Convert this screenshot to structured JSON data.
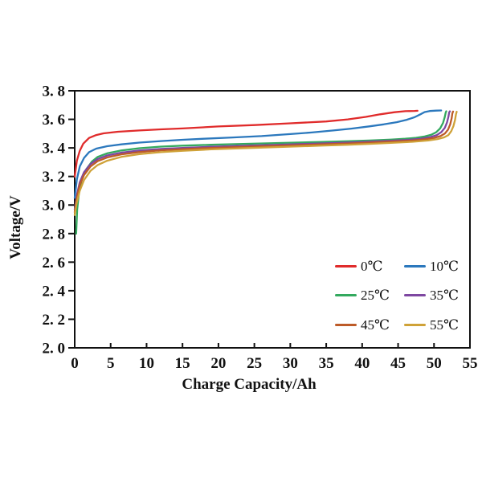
{
  "chart_data": {
    "type": "line",
    "title": "",
    "xlabel": "Charge Capacity/Ah",
    "ylabel": "Voltage/V",
    "xlim": [
      0,
      55
    ],
    "ylim": [
      2.0,
      3.8
    ],
    "grid": false,
    "legend_position": "inside lower right, 2 columns",
    "frame_color": "#111111",
    "xticks": {
      "values": [
        0,
        5,
        10,
        15,
        20,
        25,
        30,
        35,
        40,
        45,
        50,
        55
      ],
      "labels": [
        "0",
        "5",
        "10",
        "15",
        "20",
        "25",
        "30",
        "35",
        "40",
        "45",
        "50",
        "55"
      ]
    },
    "yticks": {
      "values": [
        2.0,
        2.2,
        2.4,
        2.6,
        2.8,
        3.0,
        3.2,
        3.4,
        3.6,
        3.8
      ],
      "labels": [
        "2. 0",
        "2. 2",
        "2. 4",
        "2. 6",
        "2. 8",
        "3. 0",
        "3. 2",
        "3. 4",
        "3. 6",
        "3. 8"
      ]
    },
    "series": [
      {
        "name": "0℃",
        "color": "#e02b2b",
        "points": [
          [
            0,
            3.2
          ],
          [
            0.3,
            3.31
          ],
          [
            0.7,
            3.38
          ],
          [
            1.2,
            3.43
          ],
          [
            2,
            3.47
          ],
          [
            3,
            3.49
          ],
          [
            4,
            3.502
          ],
          [
            6,
            3.513
          ],
          [
            9,
            3.522
          ],
          [
            12,
            3.53
          ],
          [
            15,
            3.536
          ],
          [
            20,
            3.55
          ],
          [
            25,
            3.56
          ],
          [
            30,
            3.572
          ],
          [
            35,
            3.585
          ],
          [
            38,
            3.6
          ],
          [
            40.5,
            3.617
          ],
          [
            42.5,
            3.635
          ],
          [
            44.5,
            3.65
          ],
          [
            46,
            3.657
          ],
          [
            47.3,
            3.659
          ],
          [
            47.7,
            3.66
          ]
        ]
      },
      {
        "name": "10℃",
        "color": "#2b78bd",
        "points": [
          [
            0,
            3.05
          ],
          [
            0.3,
            3.18
          ],
          [
            0.7,
            3.27
          ],
          [
            1.3,
            3.33
          ],
          [
            2,
            3.37
          ],
          [
            3,
            3.395
          ],
          [
            4.5,
            3.412
          ],
          [
            6.5,
            3.425
          ],
          [
            9,
            3.437
          ],
          [
            12,
            3.448
          ],
          [
            15,
            3.457
          ],
          [
            18,
            3.464
          ],
          [
            22,
            3.473
          ],
          [
            26,
            3.483
          ],
          [
            30,
            3.497
          ],
          [
            33,
            3.508
          ],
          [
            36,
            3.522
          ],
          [
            38.5,
            3.535
          ],
          [
            41,
            3.551
          ],
          [
            43,
            3.565
          ],
          [
            44.8,
            3.58
          ],
          [
            46.2,
            3.597
          ],
          [
            47.3,
            3.615
          ],
          [
            48.1,
            3.635
          ],
          [
            48.7,
            3.651
          ],
          [
            49.4,
            3.658
          ],
          [
            50.3,
            3.661
          ],
          [
            51,
            3.662
          ]
        ]
      },
      {
        "name": "25℃",
        "color": "#33a95e",
        "points": [
          [
            0.2,
            2.8
          ],
          [
            0.35,
            2.97
          ],
          [
            0.6,
            3.09
          ],
          [
            1,
            3.18
          ],
          [
            1.6,
            3.25
          ],
          [
            2.4,
            3.305
          ],
          [
            3.2,
            3.337
          ],
          [
            4.5,
            3.362
          ],
          [
            6.5,
            3.382
          ],
          [
            9,
            3.398
          ],
          [
            12,
            3.409
          ],
          [
            15,
            3.416
          ],
          [
            19,
            3.422
          ],
          [
            24,
            3.429
          ],
          [
            29,
            3.435
          ],
          [
            34,
            3.441
          ],
          [
            38,
            3.447
          ],
          [
            41,
            3.452
          ],
          [
            44,
            3.458
          ],
          [
            46,
            3.464
          ],
          [
            47.5,
            3.471
          ],
          [
            48.7,
            3.48
          ],
          [
            49.6,
            3.492
          ],
          [
            50.3,
            3.51
          ],
          [
            50.85,
            3.537
          ],
          [
            51.25,
            3.575
          ],
          [
            51.5,
            3.617
          ],
          [
            51.62,
            3.647
          ],
          [
            51.7,
            3.656
          ]
        ]
      },
      {
        "name": "35℃",
        "color": "#7e47a1",
        "points": [
          [
            0,
            2.97
          ],
          [
            0.3,
            3.07
          ],
          [
            0.7,
            3.16
          ],
          [
            1.3,
            3.23
          ],
          [
            2.2,
            3.287
          ],
          [
            3.2,
            3.322
          ],
          [
            4.5,
            3.347
          ],
          [
            6.5,
            3.367
          ],
          [
            9,
            3.382
          ],
          [
            12,
            3.393
          ],
          [
            15,
            3.4
          ],
          [
            19,
            3.408
          ],
          [
            24,
            3.416
          ],
          [
            29,
            3.423
          ],
          [
            34,
            3.431
          ],
          [
            38,
            3.438
          ],
          [
            41,
            3.444
          ],
          [
            44,
            3.45
          ],
          [
            46.5,
            3.457
          ],
          [
            48.2,
            3.465
          ],
          [
            49.5,
            3.476
          ],
          [
            50.4,
            3.49
          ],
          [
            51.0,
            3.51
          ],
          [
            51.5,
            3.54
          ],
          [
            51.8,
            3.578
          ],
          [
            52.0,
            3.618
          ],
          [
            52.1,
            3.648
          ],
          [
            52.2,
            3.656
          ]
        ]
      },
      {
        "name": "45℃",
        "color": "#bd5b28",
        "points": [
          [
            0,
            2.95
          ],
          [
            0.3,
            3.05
          ],
          [
            0.7,
            3.14
          ],
          [
            1.3,
            3.21
          ],
          [
            2.2,
            3.27
          ],
          [
            3.2,
            3.307
          ],
          [
            4.5,
            3.333
          ],
          [
            6.5,
            3.355
          ],
          [
            9,
            3.371
          ],
          [
            12,
            3.383
          ],
          [
            15,
            3.391
          ],
          [
            19,
            3.4
          ],
          [
            24,
            3.408
          ],
          [
            29,
            3.416
          ],
          [
            34,
            3.424
          ],
          [
            38,
            3.431
          ],
          [
            41,
            3.437
          ],
          [
            44,
            3.444
          ],
          [
            47,
            3.452
          ],
          [
            48.8,
            3.46
          ],
          [
            50.0,
            3.47
          ],
          [
            50.9,
            3.483
          ],
          [
            51.5,
            3.5
          ],
          [
            51.95,
            3.528
          ],
          [
            52.25,
            3.565
          ],
          [
            52.45,
            3.607
          ],
          [
            52.55,
            3.642
          ],
          [
            52.65,
            3.655
          ]
        ]
      },
      {
        "name": "55℃",
        "color": "#cfa238",
        "points": [
          [
            0,
            2.93
          ],
          [
            0.3,
            3.02
          ],
          [
            0.7,
            3.1
          ],
          [
            1.3,
            3.175
          ],
          [
            2.2,
            3.24
          ],
          [
            3.2,
            3.28
          ],
          [
            4.5,
            3.31
          ],
          [
            6.5,
            3.337
          ],
          [
            9,
            3.356
          ],
          [
            12,
            3.37
          ],
          [
            15,
            3.38
          ],
          [
            19,
            3.39
          ],
          [
            24,
            3.399
          ],
          [
            29,
            3.407
          ],
          [
            34,
            3.415
          ],
          [
            38,
            3.422
          ],
          [
            41,
            3.428
          ],
          [
            44,
            3.435
          ],
          [
            47,
            3.443
          ],
          [
            49.2,
            3.452
          ],
          [
            50.5,
            3.462
          ],
          [
            51.4,
            3.474
          ],
          [
            52.0,
            3.49
          ],
          [
            52.4,
            3.517
          ],
          [
            52.7,
            3.552
          ],
          [
            52.92,
            3.595
          ],
          [
            53.05,
            3.635
          ],
          [
            53.15,
            3.653
          ]
        ]
      }
    ]
  }
}
